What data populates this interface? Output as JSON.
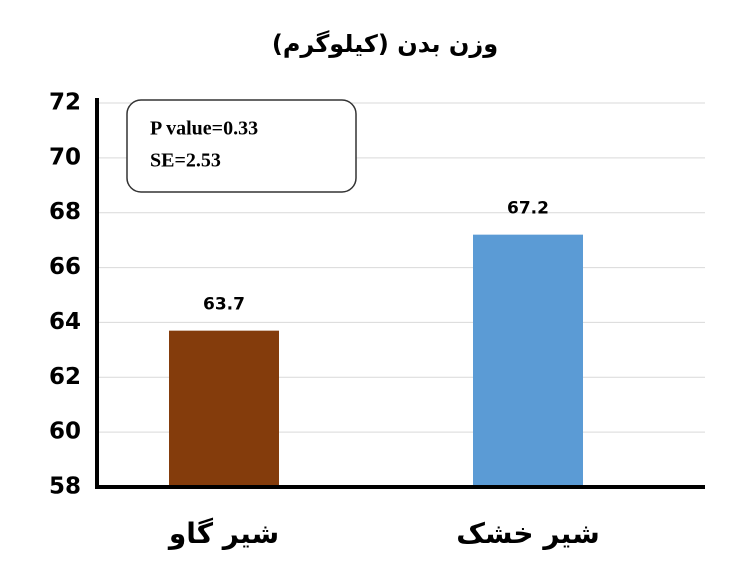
{
  "chart_data": {
    "type": "bar",
    "title": "وزن بدن (کیلوگرم)",
    "categories": [
      "شیر گاو",
      "شیر خشک"
    ],
    "values": [
      63.7,
      67.2
    ],
    "colors": [
      "#843c0c",
      "#5b9bd5"
    ],
    "ylim": [
      58,
      72
    ],
    "yticks": [
      58,
      60,
      62,
      64,
      66,
      68,
      70,
      72
    ],
    "grid": true,
    "annotations": [
      "P value=0.33",
      "SE=2.53"
    ]
  }
}
